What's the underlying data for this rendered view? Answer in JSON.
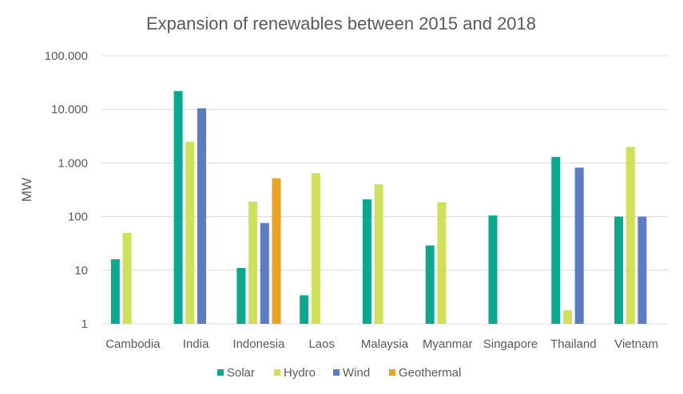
{
  "chart_data": {
    "type": "bar",
    "title": "Expansion of renewables between 2015 and 2018",
    "ylabel": "MW",
    "xlabel": "",
    "yscale": "log",
    "ylim": [
      1,
      100000
    ],
    "yticks": [
      1,
      10,
      100,
      1000,
      10000,
      100000
    ],
    "ytick_labels": [
      "1",
      "10",
      "100",
      "1.000",
      "10.000",
      "100.000"
    ],
    "grid": true,
    "legend_position": "bottom",
    "categories": [
      "Cambodia",
      "India",
      "Indonesia",
      "Laos",
      "Malaysia",
      "Myanmar",
      "Singapore",
      "Thailand",
      "Vietnam"
    ],
    "series": [
      {
        "name": "Solar",
        "color": "#0aa98f",
        "values": [
          16,
          22000,
          11,
          3.4,
          210,
          29,
          105,
          1300,
          100
        ]
      },
      {
        "name": "Hydro",
        "color": "#cfe05a",
        "values": [
          50,
          2500,
          190,
          650,
          400,
          185,
          null,
          1.8,
          2000
        ]
      },
      {
        "name": "Wind",
        "color": "#5b7cc0",
        "values": [
          null,
          10500,
          76,
          null,
          null,
          null,
          null,
          820,
          100
        ]
      },
      {
        "name": "Geothermal",
        "color": "#e9a224",
        "values": [
          null,
          null,
          520,
          null,
          null,
          null,
          null,
          null,
          null
        ]
      }
    ]
  }
}
